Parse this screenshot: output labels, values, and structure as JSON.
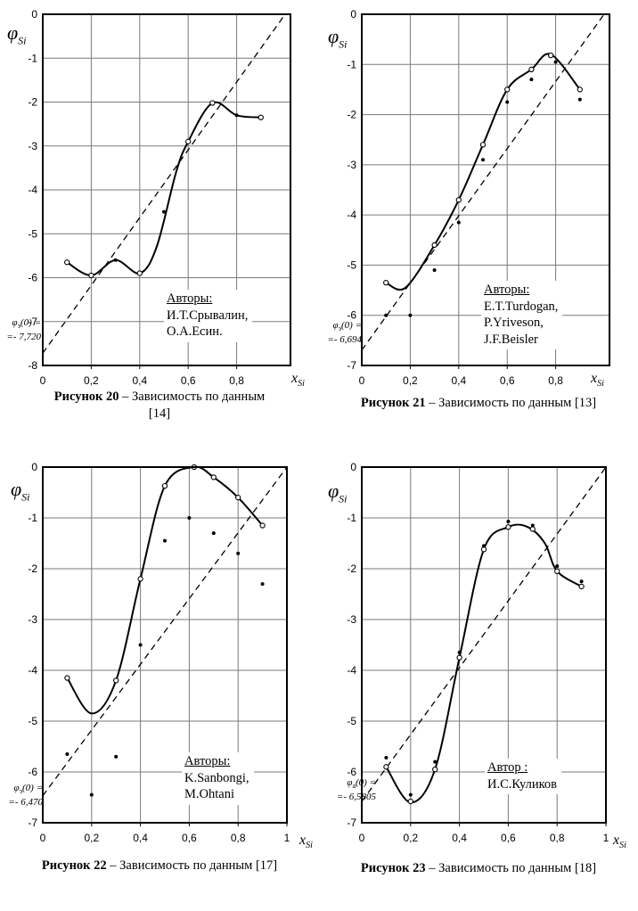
{
  "page": {
    "background": "#ffffff"
  },
  "chart_data": [
    {
      "type": "line",
      "figure_id": "figure-20",
      "caption_bold": "Рисунок 20",
      "caption_rest": "– Зависимость по данным [14]",
      "ylabel": {
        "symbol": "φ",
        "sub": "Si"
      },
      "xlabel": {
        "symbol": "x",
        "sub": "Si"
      },
      "footnote": {
        "symbol": "φ",
        "sub": "э",
        "rest": "(0) =",
        "value": "=- 7,720"
      },
      "annotation": {
        "title": "Авторы:",
        "lines": [
          "И.Т.Срывалин,",
          "О.А.Есин."
        ]
      },
      "ylim": [
        0,
        -8
      ],
      "xlim": [
        0,
        1
      ],
      "yticks": [
        "0",
        "-1",
        "-2",
        "-3",
        "-4",
        "-5",
        "-6",
        "-7",
        "-8"
      ],
      "xticks": [
        {
          "v": 0,
          "label": "0"
        },
        {
          "v": 0.2,
          "label": "0,2"
        },
        {
          "v": 0.4,
          "label": "0,4"
        },
        {
          "v": 0.6,
          "label": "0,6"
        },
        {
          "v": 0.8,
          "label": "0,8"
        }
      ],
      "phi0": -7.72,
      "dashed_line": [
        [
          0,
          -7.72
        ],
        [
          1,
          0
        ]
      ],
      "grid_color": "#7a7a7a",
      "line_color": "#000000",
      "series": [
        {
          "name": "smoothed-curve",
          "type": "line",
          "points": [
            [
              0.1,
              -5.65
            ],
            [
              0.2,
              -5.95
            ],
            [
              0.3,
              -5.6
            ],
            [
              0.4,
              -5.9
            ],
            [
              0.47,
              -5.3
            ],
            [
              0.55,
              -3.6
            ],
            [
              0.6,
              -2.9
            ],
            [
              0.7,
              -2.02
            ],
            [
              0.8,
              -2.3
            ],
            [
              0.9,
              -2.35
            ]
          ]
        },
        {
          "name": "open-circles",
          "type": "scatter",
          "marker": "open-circle",
          "points": [
            [
              0.1,
              -5.65
            ],
            [
              0.2,
              -5.95
            ],
            [
              0.4,
              -5.9
            ],
            [
              0.6,
              -2.9
            ],
            [
              0.7,
              -2.02
            ],
            [
              0.9,
              -2.35
            ]
          ]
        },
        {
          "name": "filled-dots",
          "type": "scatter",
          "marker": "filled-dot",
          "points": [
            [
              0.3,
              -5.6
            ],
            [
              0.5,
              -4.5
            ],
            [
              0.8,
              -2.3
            ]
          ]
        }
      ]
    },
    {
      "type": "line",
      "figure_id": "figure-21",
      "caption_bold": "Рисунок 21",
      "caption_rest": "– Зависимость по данным [13]",
      "ylabel": {
        "symbol": "φ",
        "sub": "Si"
      },
      "xlabel": {
        "symbol": "x",
        "sub": "Si"
      },
      "footnote": {
        "symbol": "φ",
        "sub": "э",
        "rest": "(0) =",
        "value": "=- 6,694"
      },
      "annotation": {
        "title": "Авторы:",
        "lines": [
          "E.T.Turdogan,",
          "P.Yriveson,",
          "J.F.Beisler"
        ]
      },
      "ylim": [
        0,
        -7
      ],
      "xlim": [
        0,
        1
      ],
      "yticks": [
        "0",
        "-1",
        "-2",
        "-3",
        "-4",
        "-5",
        "-6",
        "-7"
      ],
      "xticks": [
        {
          "v": 0,
          "label": "0"
        },
        {
          "v": 0.2,
          "label": "0,2"
        },
        {
          "v": 0.4,
          "label": "0,4"
        },
        {
          "v": 0.6,
          "label": "0,6"
        },
        {
          "v": 0.8,
          "label": "0,8"
        }
      ],
      "phi0": -6.694,
      "dashed_line": [
        [
          0,
          -6.694
        ],
        [
          1,
          0
        ]
      ],
      "grid_color": "#7a7a7a",
      "line_color": "#000000",
      "series": [
        {
          "name": "smoothed-curve",
          "type": "line",
          "points": [
            [
              0.1,
              -5.35
            ],
            [
              0.18,
              -5.45
            ],
            [
              0.3,
              -4.6
            ],
            [
              0.4,
              -3.7
            ],
            [
              0.5,
              -2.6
            ],
            [
              0.6,
              -1.5
            ],
            [
              0.7,
              -1.1
            ],
            [
              0.78,
              -0.8
            ],
            [
              0.9,
              -1.5
            ]
          ]
        },
        {
          "name": "open-circles",
          "type": "scatter",
          "marker": "open-circle",
          "points": [
            [
              0.1,
              -5.35
            ],
            [
              0.3,
              -4.6
            ],
            [
              0.4,
              -3.7
            ],
            [
              0.5,
              -2.6
            ],
            [
              0.6,
              -1.5
            ],
            [
              0.7,
              -1.1
            ],
            [
              0.78,
              -0.82
            ],
            [
              0.9,
              -1.5
            ]
          ]
        },
        {
          "name": "filled-dots",
          "type": "scatter",
          "marker": "filled-dot",
          "points": [
            [
              0.1,
              -6.0
            ],
            [
              0.2,
              -6.0
            ],
            [
              0.3,
              -5.1
            ],
            [
              0.4,
              -4.15
            ],
            [
              0.5,
              -2.9
            ],
            [
              0.6,
              -1.75
            ],
            [
              0.7,
              -1.3
            ],
            [
              0.8,
              -0.95
            ],
            [
              0.9,
              -1.7
            ]
          ]
        }
      ]
    },
    {
      "type": "line",
      "figure_id": "figure-22",
      "caption_bold": "Рисунок 22",
      "caption_rest": "– Зависимость по данным [17]",
      "ylabel": {
        "symbol": "φ",
        "sub": "Si"
      },
      "xlabel": {
        "symbol": "x",
        "sub": "Si"
      },
      "footnote": {
        "symbol": "φ",
        "sub": "э",
        "rest": "(0) =",
        "value": "=- 6,470"
      },
      "annotation": {
        "title": "Авторы:",
        "lines": [
          "K.Sanbongi,",
          "M.Ohtani"
        ]
      },
      "ylim": [
        0,
        -7
      ],
      "xlim": [
        0,
        1
      ],
      "yticks": [
        "0",
        "-1",
        "-2",
        "-3",
        "-4",
        "-5",
        "-6",
        "-7"
      ],
      "xticks": [
        {
          "v": 0,
          "label": "0"
        },
        {
          "v": 0.2,
          "label": "0,2"
        },
        {
          "v": 0.4,
          "label": "0,4"
        },
        {
          "v": 0.6,
          "label": "0,6"
        },
        {
          "v": 0.8,
          "label": "0,8"
        },
        {
          "v": 1,
          "label": "1"
        }
      ],
      "phi0": -6.47,
      "dashed_line": [
        [
          0,
          -6.47
        ],
        [
          1,
          0
        ]
      ],
      "grid_color": "#7a7a7a",
      "line_color": "#000000",
      "series": [
        {
          "name": "smoothed-curve",
          "type": "line",
          "points": [
            [
              0.1,
              -4.15
            ],
            [
              0.2,
              -4.85
            ],
            [
              0.3,
              -4.2
            ],
            [
              0.4,
              -2.2
            ],
            [
              0.5,
              -0.37
            ],
            [
              0.62,
              0.0
            ],
            [
              0.7,
              -0.2
            ],
            [
              0.8,
              -0.6
            ],
            [
              0.9,
              -1.15
            ]
          ]
        },
        {
          "name": "open-circles",
          "type": "scatter",
          "marker": "open-circle",
          "points": [
            [
              0.1,
              -4.15
            ],
            [
              0.3,
              -4.2
            ],
            [
              0.4,
              -2.2
            ],
            [
              0.5,
              -0.37
            ],
            [
              0.62,
              0.0
            ],
            [
              0.7,
              -0.2
            ],
            [
              0.8,
              -0.6
            ],
            [
              0.9,
              -1.15
            ]
          ]
        },
        {
          "name": "filled-dots",
          "type": "scatter",
          "marker": "filled-dot",
          "points": [
            [
              0.1,
              -5.65
            ],
            [
              0.2,
              -6.45
            ],
            [
              0.3,
              -5.7
            ],
            [
              0.4,
              -3.5
            ],
            [
              0.5,
              -1.45
            ],
            [
              0.6,
              -1.0
            ],
            [
              0.7,
              -1.3
            ],
            [
              0.8,
              -1.7
            ],
            [
              0.9,
              -2.3
            ]
          ]
        }
      ]
    },
    {
      "type": "line",
      "figure_id": "figure-23",
      "caption_bold": "Рисунок 23",
      "caption_rest": "– Зависимость по данным [18]",
      "ylabel": {
        "symbol": "φ",
        "sub": "Si"
      },
      "xlabel": {
        "symbol": "x",
        "sub": "Si"
      },
      "footnote": {
        "symbol": "φ",
        "sub": "а",
        "rest": "(0) =",
        "value": "=- 6,5805"
      },
      "annotation": {
        "title": "Автор :",
        "lines": [
          "И.С.Куликов"
        ]
      },
      "ylim": [
        0,
        -7
      ],
      "xlim": [
        0,
        1
      ],
      "yticks": [
        "0",
        "-1",
        "-2",
        "-3",
        "-4",
        "-5",
        "-6",
        "-7"
      ],
      "xticks": [
        {
          "v": 0,
          "label": "0"
        },
        {
          "v": 0.2,
          "label": "0,2"
        },
        {
          "v": 0.4,
          "label": "0,4"
        },
        {
          "v": 0.6,
          "label": "0,6"
        },
        {
          "v": 0.8,
          "label": "0,8"
        },
        {
          "v": 1,
          "label": "1"
        }
      ],
      "phi0": -6.5805,
      "dashed_line": [
        [
          0,
          -6.5805
        ],
        [
          1,
          0
        ]
      ],
      "grid_color": "#7a7a7a",
      "line_color": "#000000",
      "series": [
        {
          "name": "smoothed-curve",
          "type": "line",
          "points": [
            [
              0.1,
              -5.9
            ],
            [
              0.2,
              -6.6
            ],
            [
              0.3,
              -5.95
            ],
            [
              0.4,
              -3.75
            ],
            [
              0.5,
              -1.62
            ],
            [
              0.6,
              -1.18
            ],
            [
              0.68,
              -1.18
            ],
            [
              0.75,
              -1.5
            ],
            [
              0.8,
              -2.05
            ],
            [
              0.9,
              -2.35
            ]
          ]
        },
        {
          "name": "open-circles",
          "type": "scatter",
          "marker": "open-circle",
          "points": [
            [
              0.1,
              -5.9
            ],
            [
              0.2,
              -6.58
            ],
            [
              0.3,
              -5.95
            ],
            [
              0.4,
              -3.75
            ],
            [
              0.5,
              -1.62
            ],
            [
              0.6,
              -1.18
            ],
            [
              0.7,
              -1.22
            ],
            [
              0.8,
              -2.05
            ],
            [
              0.9,
              -2.35
            ]
          ]
        },
        {
          "name": "filled-dots",
          "type": "scatter",
          "marker": "filled-dot",
          "points": [
            [
              0.1,
              -5.72
            ],
            [
              0.2,
              -6.45
            ],
            [
              0.3,
              -5.8
            ],
            [
              0.4,
              -3.65
            ],
            [
              0.5,
              -1.55
            ],
            [
              0.6,
              -1.07
            ],
            [
              0.7,
              -1.15
            ],
            [
              0.8,
              -1.95
            ],
            [
              0.9,
              -2.25
            ]
          ]
        }
      ]
    }
  ]
}
